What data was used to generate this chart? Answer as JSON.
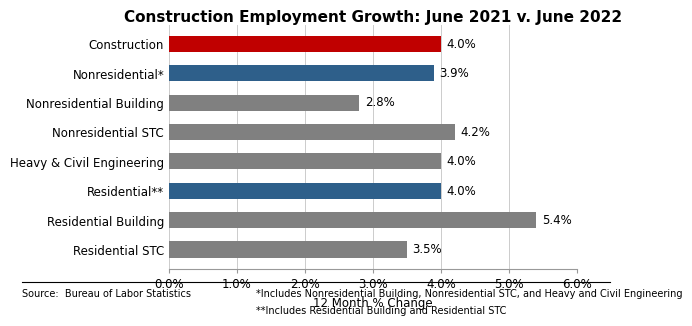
{
  "title": "Construction Employment Growth: June 2021 v. June 2022",
  "categories": [
    "Residential STC",
    "Residential Building",
    "Residential**",
    "Heavy & Civil Engineering",
    "Nonresidential STC",
    "Nonresidential Building",
    "Nonresidential*",
    "Construction"
  ],
  "values": [
    3.5,
    5.4,
    4.0,
    4.0,
    4.2,
    2.8,
    3.9,
    4.0
  ],
  "colors": [
    "#808080",
    "#808080",
    "#2E5F8A",
    "#808080",
    "#808080",
    "#808080",
    "#2E5F8A",
    "#C00000"
  ],
  "xlabel": "12 Month % Change",
  "xlim": [
    0,
    6.0
  ],
  "xtick_values": [
    0.0,
    1.0,
    2.0,
    3.0,
    4.0,
    5.0,
    6.0
  ],
  "source_text": "Source:  Bureau of Labor Statistics",
  "footnote1": "*Includes Nonresidential Building, Nonresidential STC, and Heavy and Civil Engineering",
  "footnote2": "**Includes Residential Building and Residential STC",
  "bar_height": 0.55,
  "background_color": "#FFFFFF",
  "label_fontsize": 8.5,
  "value_fontsize": 8.5,
  "title_fontsize": 11,
  "footnote_fontsize": 7.0
}
